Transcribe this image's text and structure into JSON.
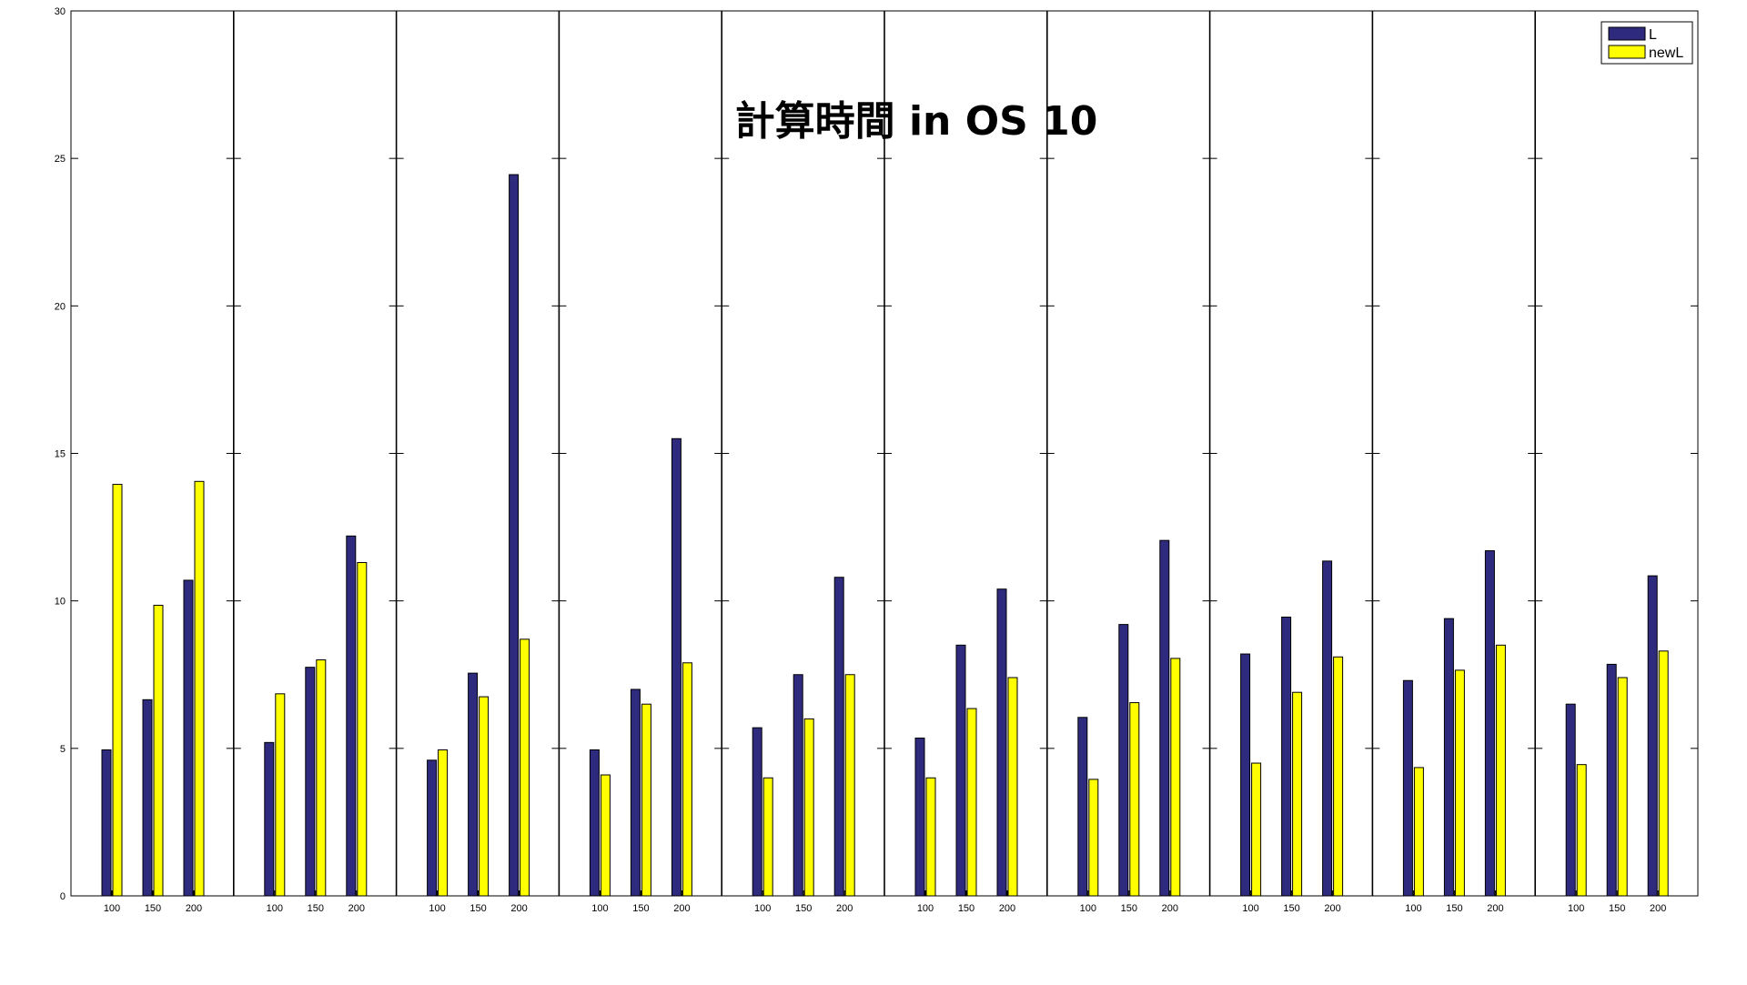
{
  "chart_data": {
    "type": "bar",
    "title": "計算時間 in OS 10",
    "xlabel": "",
    "ylabel": "",
    "ylim": [
      0,
      30
    ],
    "yticks": [
      0,
      5,
      10,
      15,
      20,
      25,
      30
    ],
    "categories": [
      "100",
      "150",
      "200"
    ],
    "panel_count": 10,
    "grid": false,
    "legend_position": "top-right",
    "series": [
      {
        "name": "L",
        "color": "#2E2A7E",
        "panels": [
          [
            4.95,
            6.65,
            10.7
          ],
          [
            5.2,
            7.75,
            12.2
          ],
          [
            4.6,
            7.55,
            24.45
          ],
          [
            4.95,
            7.0,
            15.5
          ],
          [
            5.7,
            7.5,
            10.8
          ],
          [
            5.35,
            8.5,
            10.4
          ],
          [
            6.05,
            9.2,
            12.05
          ],
          [
            8.2,
            9.45,
            11.35
          ],
          [
            7.3,
            9.4,
            11.7
          ],
          [
            6.5,
            7.85,
            10.85
          ]
        ]
      },
      {
        "name": "newL",
        "color": "#FFFF00",
        "panels": [
          [
            13.95,
            9.85,
            14.05
          ],
          [
            6.85,
            8.0,
            11.3
          ],
          [
            4.95,
            6.75,
            8.7
          ],
          [
            4.1,
            6.5,
            7.9
          ],
          [
            4.0,
            6.0,
            7.5
          ],
          [
            4.0,
            6.35,
            7.4
          ],
          [
            3.95,
            6.55,
            8.05
          ],
          [
            4.5,
            6.9,
            8.1
          ],
          [
            4.35,
            7.65,
            8.5
          ],
          [
            4.45,
            7.4,
            8.3
          ]
        ]
      }
    ]
  }
}
